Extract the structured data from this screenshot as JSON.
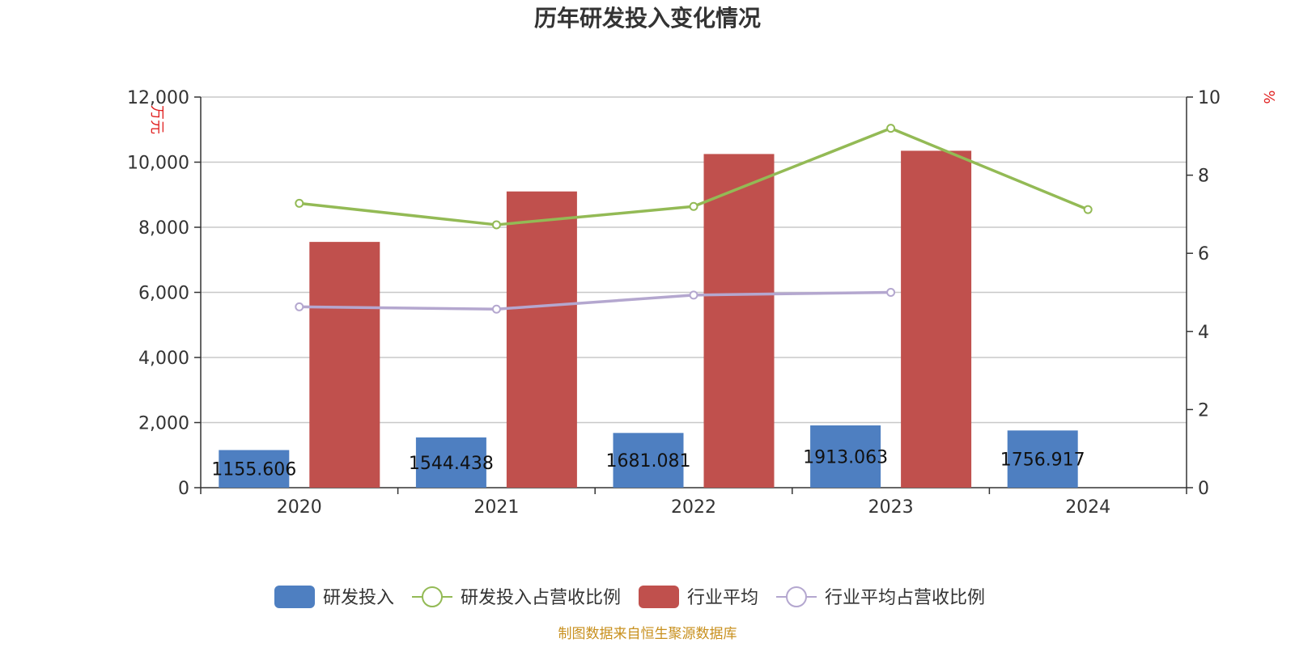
{
  "chart_data": {
    "type": "bar",
    "title": "历年研发投入变化情况",
    "categories": [
      "2020",
      "2021",
      "2022",
      "2023",
      "2024"
    ],
    "y_left": {
      "unit": "万元",
      "ylim": [
        0,
        12000
      ],
      "ticks": [
        0,
        2000,
        4000,
        6000,
        8000,
        10000,
        12000
      ],
      "tick_labels": [
        "0",
        "2,000",
        "4,000",
        "6,000",
        "8,000",
        "10,000",
        "12,000"
      ]
    },
    "y_right": {
      "unit": "%",
      "ylim": [
        0,
        10
      ],
      "ticks": [
        0,
        2,
        4,
        6,
        8,
        10
      ],
      "tick_labels": [
        "0",
        "2",
        "4",
        "6",
        "8",
        "10"
      ]
    },
    "grid": true,
    "legend_position": "bottom",
    "series": [
      {
        "name": "研发投入",
        "kind": "bar",
        "axis": "left",
        "color": "#4e7fc1",
        "values": [
          1155.606,
          1544.438,
          1681.081,
          1913.063,
          1756.917
        ],
        "labels": [
          "1155.606",
          "1544.438",
          "1681.081",
          "1913.063",
          "1756.917"
        ]
      },
      {
        "name": "研发投入占营收比例",
        "kind": "line",
        "axis": "right",
        "color": "#93ba55",
        "values": [
          7.28,
          6.73,
          7.2,
          9.2,
          7.12
        ]
      },
      {
        "name": "行业平均",
        "kind": "bar",
        "axis": "left",
        "color": "#c0504d",
        "values": [
          7550,
          9100,
          10250,
          10350,
          null
        ]
      },
      {
        "name": "行业平均占营收比例",
        "kind": "line",
        "axis": "right",
        "color": "#b4a7cf",
        "values": [
          4.63,
          4.57,
          4.93,
          5.0,
          null
        ]
      }
    ]
  },
  "source": "制图数据来自恒生聚源数据库"
}
